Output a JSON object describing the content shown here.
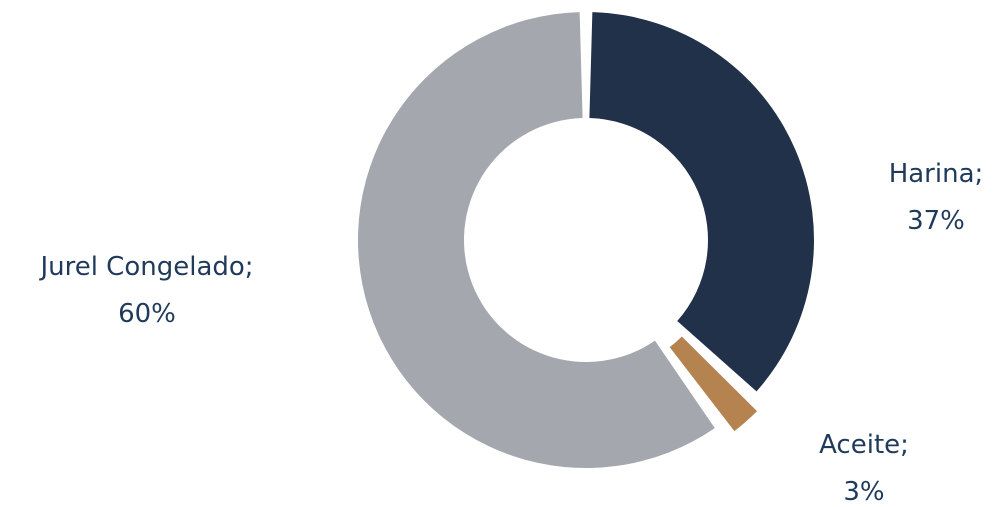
{
  "chart_data": {
    "type": "pie",
    "variant": "donut",
    "title": "",
    "slices": [
      {
        "name": "Harina",
        "value": 37,
        "label": "Harina;",
        "pct_label": "37%",
        "color": "#22314a"
      },
      {
        "name": "Aceite",
        "value": 3,
        "label": "Aceite;",
        "pct_label": "3%",
        "color": "#b5834f"
      },
      {
        "name": "Jurel Congelado",
        "value": 60,
        "label": "Jurel Congelado;",
        "pct_label": "60%",
        "color": "#a4a7ad"
      }
    ],
    "legend": "none",
    "label_color": "#1f3a5a",
    "background": "#ffffff"
  }
}
